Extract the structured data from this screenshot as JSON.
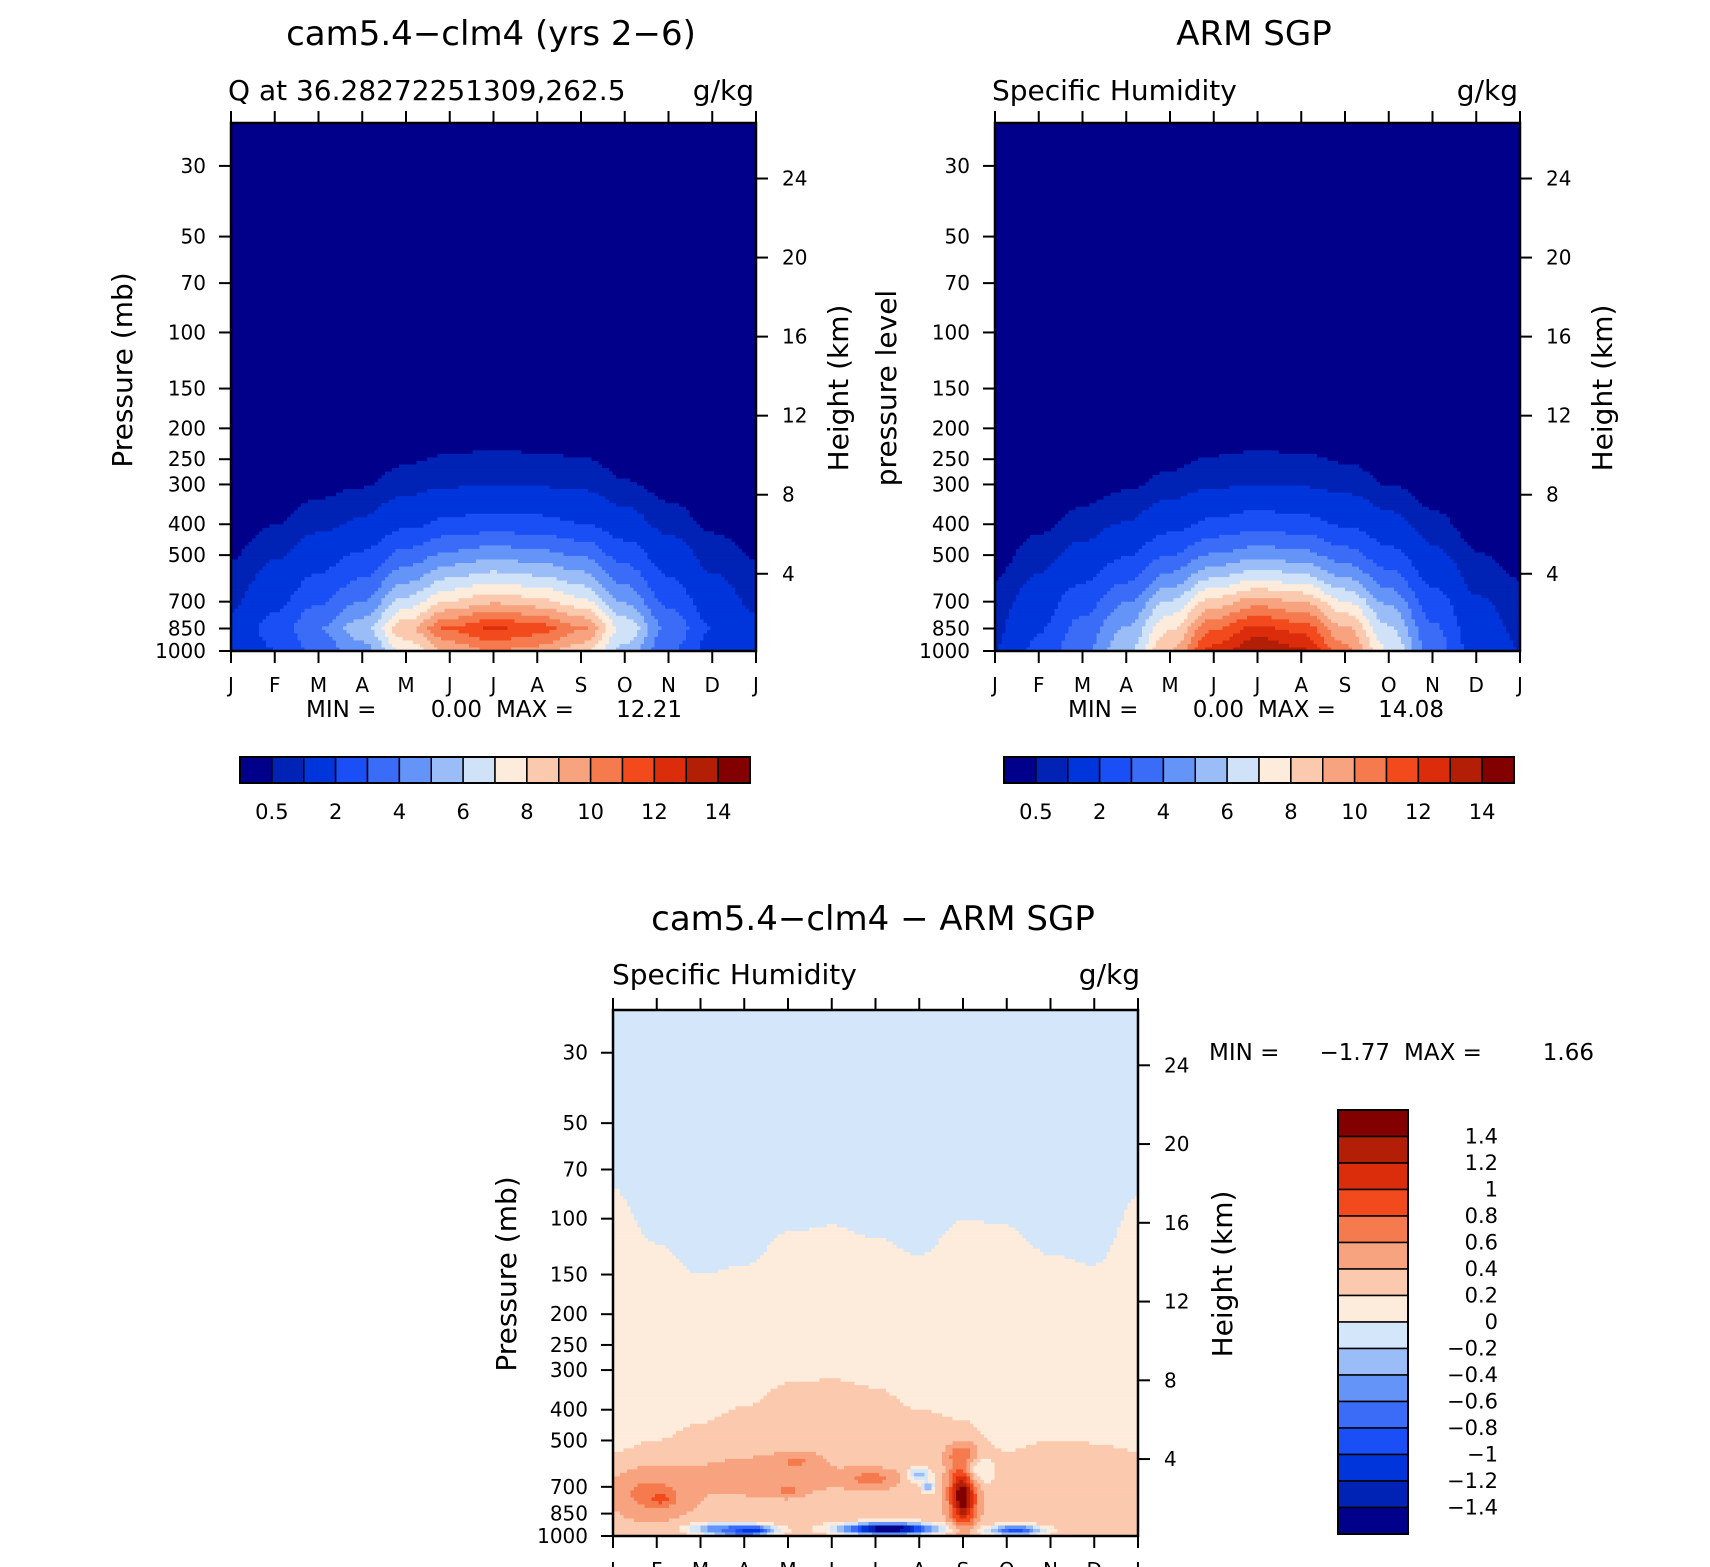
{
  "panels": [
    {
      "id": "model",
      "title": "cam5.4−clm4 (yrs 2−6)",
      "left_subtitle": "Q at 36.28272251309,262.5",
      "right_subtitle": "g/kg",
      "ylabel": "Pressure (mb)",
      "ylabel_right": "Height (km)",
      "min_label": "MIN =",
      "min_value": "0.00",
      "max_label": "MAX =",
      "max_value": "12.21",
      "colorbar": "horizontal",
      "field": "model"
    },
    {
      "id": "obs",
      "title": "ARM SGP",
      "left_subtitle": "Specific Humidity",
      "right_subtitle": "g/kg",
      "ylabel": "pressure level",
      "ylabel_right": "Height (km)",
      "min_label": "MIN =",
      "min_value": "0.00",
      "max_label": "MAX =",
      "max_value": "14.08",
      "colorbar": "horizontal",
      "field": "obs"
    },
    {
      "id": "diff",
      "title": "cam5.4−clm4 − ARM SGP",
      "left_subtitle": "Specific Humidity",
      "right_subtitle": "g/kg",
      "ylabel": "Pressure (mb)",
      "ylabel_right": "Height (km)",
      "min_label": "MIN =",
      "min_value": "−1.77",
      "max_label": "MAX =",
      "max_value": "1.66",
      "colorbar": "vertical",
      "field": "diff"
    }
  ],
  "chart_data": {
    "type": "heatmap",
    "x_ticks": [
      "J",
      "F",
      "M",
      "A",
      "M",
      "J",
      "J",
      "A",
      "S",
      "O",
      "N",
      "D",
      "J"
    ],
    "months": [
      1,
      2,
      3,
      4,
      5,
      6,
      7,
      8,
      9,
      10,
      11,
      12,
      13
    ],
    "pressure_ticks": [
      30,
      50,
      70,
      100,
      150,
      200,
      250,
      300,
      400,
      500,
      700,
      850,
      1000
    ],
    "pressure_range": [
      22,
      1000
    ],
    "y_scale": "log",
    "height_ticks": [
      4,
      8,
      12,
      16,
      20,
      24
    ],
    "levels_abs": [
      0.5,
      1,
      2,
      3,
      4,
      5,
      6,
      7,
      8,
      9,
      10,
      11,
      12,
      13,
      14
    ],
    "abs_colorbar_labels": [
      "0.5",
      "2",
      "4",
      "6",
      "8",
      "10",
      "12",
      "14"
    ],
    "abs_colors": [
      "#00008b",
      "#0022b5",
      "#0035db",
      "#1a4ff5",
      "#3a6cf8",
      "#6494f8",
      "#9bbdf7",
      "#cfe2f8",
      "#fdebdb",
      "#fbc9ae",
      "#f8a37f",
      "#f57b4f",
      "#f24a1d",
      "#db2c0c",
      "#b31e06",
      "#830000"
    ],
    "levels_diff": [
      -1.4,
      -1.2,
      -1,
      -0.8,
      -0.6,
      -0.4,
      -0.2,
      0,
      0.2,
      0.4,
      0.6,
      0.8,
      1,
      1.2,
      1.4
    ],
    "diff_colorbar_labels": [
      "1.4",
      "1.2",
      "1",
      "0.8",
      "0.6",
      "0.4",
      "0.2",
      "0",
      "−0.2",
      "−0.4",
      "−0.6",
      "−0.8",
      "−1",
      "−1.2",
      "−1.4"
    ],
    "diff_colors": [
      "#00008b",
      "#0022b5",
      "#0035db",
      "#1a4ff5",
      "#3a6cf8",
      "#6494f8",
      "#9bbdf7",
      "#d4e6f9",
      "#fdebdb",
      "#fbc9ae",
      "#f8a37f",
      "#f57b4f",
      "#f24a1d",
      "#db2c0c",
      "#b31e06",
      "#830000"
    ],
    "model": {
      "q850_by_month": [
        1.2,
        2.4,
        4,
        5.6,
        8.8,
        11.2,
        12.2,
        11.6,
        10.2,
        6.8,
        3.8,
        2,
        1.2
      ],
      "fraction_of_850": [
        {
          "p": 1000,
          "f": 0.82
        },
        {
          "p": 850,
          "f": 1.0
        },
        {
          "p": 700,
          "f": 0.72
        },
        {
          "p": 600,
          "f": 0.55
        },
        {
          "p": 500,
          "f": 0.38
        },
        {
          "p": 400,
          "f": 0.2
        },
        {
          "p": 300,
          "f": 0.08
        },
        {
          "p": 200,
          "f": 0.015
        },
        {
          "p": 100,
          "f": 0.002
        },
        {
          "p": 22,
          "f": 0.0005
        }
      ]
    },
    "obs": {
      "q850_by_month": [
        1,
        2.2,
        3.8,
        5.8,
        9,
        12.4,
        14,
        13.2,
        10.4,
        7,
        3.6,
        1.6,
        1
      ],
      "fraction_of_850": [
        {
          "p": 1000,
          "f": 1.0
        },
        {
          "p": 850,
          "f": 0.88
        },
        {
          "p": 700,
          "f": 0.68
        },
        {
          "p": 600,
          "f": 0.5
        },
        {
          "p": 500,
          "f": 0.33
        },
        {
          "p": 400,
          "f": 0.18
        },
        {
          "p": 300,
          "f": 0.07
        },
        {
          "p": 200,
          "f": 0.012
        },
        {
          "p": 100,
          "f": 0.002
        },
        {
          "p": 22,
          "f": 0.0005
        }
      ]
    },
    "diff": {
      "background_p_top_by_month": [
        80,
        120,
        150,
        140,
        110,
        105,
        115,
        130,
        100,
        105,
        130,
        140,
        85
      ],
      "mid_p_top_by_month": [
        540,
        500,
        440,
        390,
        330,
        320,
        340,
        400,
        430,
        540,
        500,
        510,
        540
      ],
      "features": [
        {
          "month": 1.9,
          "p": 740,
          "value": 0.7,
          "dm": 0.9,
          "dlogp": 0.17
        },
        {
          "month": 2.1,
          "p": 760,
          "value": 0.9,
          "dm": 0.25,
          "dlogp": 0.05
        },
        {
          "month": 4.5,
          "p": 650,
          "value": 0.55,
          "dm": 1.7,
          "dlogp": 0.15
        },
        {
          "month": 5.2,
          "p": 580,
          "value": 0.65,
          "dm": 0.45,
          "dlogp": 0.06
        },
        {
          "month": 6.9,
          "p": 660,
          "value": 0.7,
          "dm": 0.6,
          "dlogp": 0.07
        },
        {
          "month": 5.0,
          "p": 720,
          "value": 0.7,
          "dm": 0.3,
          "dlogp": 0.04
        },
        {
          "month": 8.0,
          "p": 640,
          "value": -0.3,
          "dm": 0.25,
          "dlogp": 0.05
        },
        {
          "month": 8.2,
          "p": 700,
          "value": -0.35,
          "dm": 0.15,
          "dlogp": 0.04
        },
        {
          "month": 9.0,
          "p": 740,
          "value": 1.66,
          "dm": 0.3,
          "dlogp": 0.22
        },
        {
          "month": 9.0,
          "p": 560,
          "value": 0.8,
          "dm": 0.35,
          "dlogp": 0.08
        },
        {
          "month": 9.5,
          "p": 620,
          "value": -0.1,
          "dm": 0.35,
          "dlogp": 0.1
        },
        {
          "month": 10.7,
          "p": 620,
          "value": 0.35,
          "dm": 1.2,
          "dlogp": 0.15
        },
        {
          "month": 4.0,
          "p": 960,
          "value": -1.6,
          "dm": 0.6,
          "dlogp": 0.035
        },
        {
          "month": 3.5,
          "p": 950,
          "value": -0.6,
          "dm": 0.7,
          "dlogp": 0.04
        },
        {
          "month": 7.3,
          "p": 950,
          "value": -1.77,
          "dm": 1.0,
          "dlogp": 0.04
        },
        {
          "month": 10.2,
          "p": 960,
          "value": -0.9,
          "dm": 0.6,
          "dlogp": 0.035
        }
      ]
    }
  }
}
